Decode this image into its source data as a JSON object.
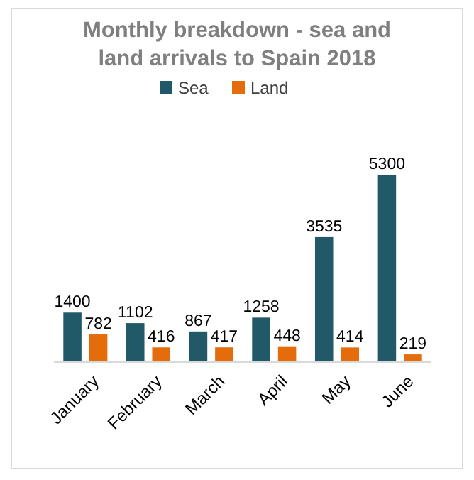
{
  "chart_data": {
    "type": "bar",
    "title": "Monthly breakdown - sea and land arrivals to Spain 2018",
    "categories": [
      "January",
      "February",
      "March",
      "April",
      "May",
      "June"
    ],
    "series": [
      {
        "name": "Sea",
        "color": "#215968",
        "values": [
          1400,
          1102,
          867,
          1258,
          3535,
          5300
        ]
      },
      {
        "name": "Land",
        "color": "#e46c0a",
        "values": [
          782,
          416,
          417,
          448,
          414,
          219
        ]
      }
    ],
    "data_labels": true,
    "legend": "top"
  }
}
